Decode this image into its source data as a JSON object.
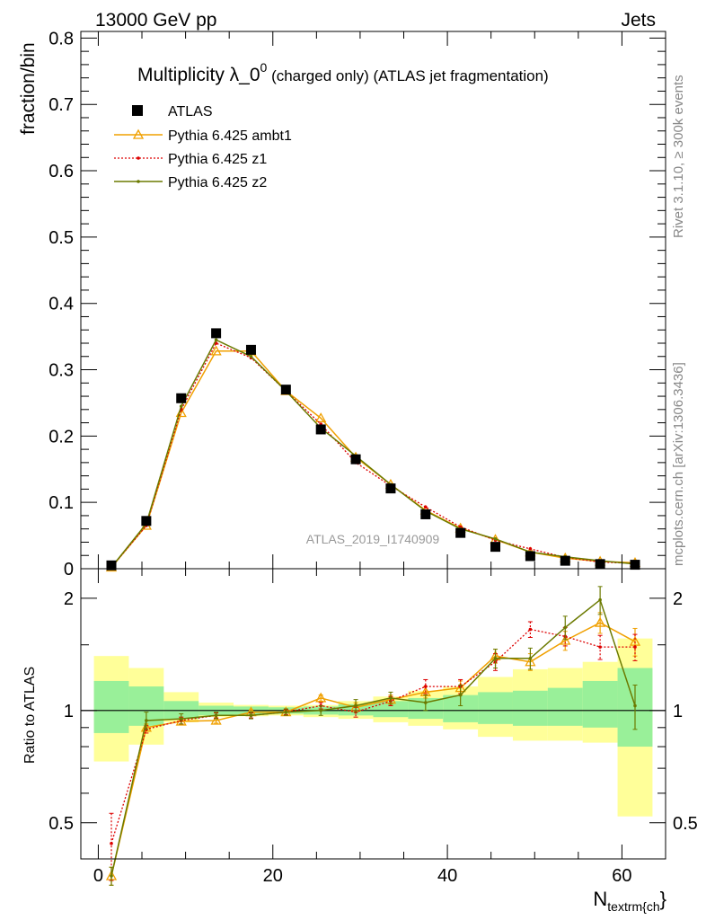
{
  "header": {
    "left": "13000 GeV pp",
    "right": "Jets"
  },
  "title": {
    "main": "Multiplicity λ_0",
    "sup": "0",
    "rest": " (charged only) (ATLAS jet fragmentation)"
  },
  "side_labels": {
    "rivet": "Rivet 3.1.10, ≥ 300k events",
    "mcplots": "mcplots.cern.ch [arXiv:1306.3436]"
  },
  "analysis_id": "ATLAS_2019_I1740909",
  "colors": {
    "data": "#000000",
    "ambt1": "#f0a000",
    "z1": "#dd0000",
    "z2": "#6b7a00",
    "band_inner": "#99f099",
    "band_outer": "#ffff99"
  },
  "chart_data": [
    {
      "type": "line",
      "panel": "main",
      "title": "Multiplicity λ_0^0 (charged only) (ATLAS jet fragmentation)",
      "ylabel": "fraction/bin",
      "xlim": [
        -2,
        65
      ],
      "ylim": [
        0,
        0.81
      ],
      "yticks": [
        0,
        0.1,
        0.2,
        0.3,
        0.4,
        0.5,
        0.6,
        0.7,
        0.8
      ],
      "yticklabels": [
        "0",
        "0.1",
        "0.2",
        "0.3",
        "0.4",
        "0.5",
        "0.6",
        "0.7",
        "0.8"
      ],
      "legend_position": "top-left",
      "x": [
        1.5,
        5.5,
        9.5,
        13.5,
        17.5,
        21.5,
        25.5,
        29.5,
        33.5,
        37.5,
        41.5,
        45.5,
        49.5,
        53.5,
        57.5,
        61.5
      ],
      "series": [
        {
          "name": "ATLAS",
          "key": "data",
          "values": [
            0.005,
            0.072,
            0.257,
            0.355,
            0.33,
            0.27,
            0.21,
            0.165,
            0.121,
            0.082,
            0.054,
            0.033,
            0.019,
            0.012,
            0.007,
            0.006
          ]
        },
        {
          "name": "Pythia 6.425 ambt1",
          "key": "ambt1",
          "values": [
            0.002,
            0.065,
            0.235,
            0.328,
            0.328,
            0.268,
            0.227,
            0.168,
            0.127,
            0.088,
            0.061,
            0.044,
            0.025,
            0.016,
            0.011,
            0.009
          ]
        },
        {
          "name": "Pythia 6.425 z1",
          "key": "z1",
          "values": [
            0.002,
            0.065,
            0.24,
            0.34,
            0.318,
            0.268,
            0.218,
            0.16,
            0.125,
            0.093,
            0.063,
            0.043,
            0.03,
            0.017,
            0.01,
            0.008
          ]
        },
        {
          "name": "Pythia 6.425 z2",
          "key": "z2",
          "values": [
            0.002,
            0.068,
            0.245,
            0.345,
            0.32,
            0.268,
            0.212,
            0.17,
            0.127,
            0.087,
            0.06,
            0.045,
            0.025,
            0.018,
            0.012,
            0.007
          ]
        }
      ]
    },
    {
      "type": "line",
      "panel": "ratio",
      "ylabel": "Ratio to ATLAS",
      "xlabel_main": "N",
      "xlabel_sub": "textrm{ch",
      "xlabel_tail": "}",
      "xlim": [
        -2,
        65
      ],
      "ylim": [
        0.4,
        2.4
      ],
      "log_y": true,
      "xticks": [
        0,
        20,
        40,
        60
      ],
      "xticklabels": [
        "0",
        "20",
        "40",
        "60"
      ],
      "yticks": [
        0.5,
        1,
        2
      ],
      "yticklabels": [
        "0.5",
        "1",
        "2"
      ],
      "bins": [
        [
          -0.5,
          3.5
        ],
        [
          3.5,
          7.5
        ],
        [
          7.5,
          11.5
        ],
        [
          11.5,
          15.5
        ],
        [
          15.5,
          19.5
        ],
        [
          19.5,
          23.5
        ],
        [
          23.5,
          27.5
        ],
        [
          27.5,
          31.5
        ],
        [
          31.5,
          35.5
        ],
        [
          35.5,
          39.5
        ],
        [
          39.5,
          43.5
        ],
        [
          43.5,
          47.5
        ],
        [
          47.5,
          51.5
        ],
        [
          51.5,
          55.5
        ],
        [
          55.5,
          59.5
        ],
        [
          59.5,
          63.5
        ]
      ],
      "band_inner": [
        [
          0.87,
          1.2
        ],
        [
          0.91,
          1.16
        ],
        [
          0.95,
          1.06
        ],
        [
          0.97,
          1.03
        ],
        [
          0.975,
          1.025
        ],
        [
          0.98,
          1.02
        ],
        [
          0.975,
          1.025
        ],
        [
          0.97,
          1.04
        ],
        [
          0.96,
          1.06
        ],
        [
          0.95,
          1.08
        ],
        [
          0.93,
          1.1
        ],
        [
          0.92,
          1.12
        ],
        [
          0.91,
          1.13
        ],
        [
          0.91,
          1.15
        ],
        [
          0.9,
          1.2
        ],
        [
          0.8,
          1.3
        ]
      ],
      "band_outer": [
        [
          0.73,
          1.4
        ],
        [
          0.81,
          1.3
        ],
        [
          0.93,
          1.12
        ],
        [
          0.96,
          1.05
        ],
        [
          0.965,
          1.035
        ],
        [
          0.97,
          1.03
        ],
        [
          0.96,
          1.035
        ],
        [
          0.95,
          1.06
        ],
        [
          0.93,
          1.09
        ],
        [
          0.91,
          1.13
        ],
        [
          0.89,
          1.16
        ],
        [
          0.85,
          1.23
        ],
        [
          0.83,
          1.29
        ],
        [
          0.83,
          1.3
        ],
        [
          0.82,
          1.35
        ],
        [
          0.52,
          1.56
        ]
      ],
      "x": [
        1.5,
        5.5,
        9.5,
        13.5,
        17.5,
        21.5,
        25.5,
        29.5,
        33.5,
        37.5,
        41.5,
        45.5,
        49.5,
        53.5,
        57.5,
        61.5
      ],
      "series": [
        {
          "name": "Pythia 6.425 ambt1",
          "key": "ambt1",
          "values": [
            0.36,
            0.9,
            0.935,
            0.94,
            0.99,
            0.99,
            1.08,
            1.02,
            1.07,
            1.12,
            1.15,
            1.4,
            1.35,
            1.54,
            1.72,
            1.53
          ],
          "err": [
            0.02,
            0.02,
            0.02,
            0.015,
            0.015,
            0.015,
            0.02,
            0.03,
            0.03,
            0.04,
            0.05,
            0.06,
            0.07,
            0.09,
            0.11,
            0.13
          ]
        },
        {
          "name": "Pythia 6.425 z1",
          "key": "z1",
          "values": [
            0.44,
            0.89,
            0.94,
            0.97,
            0.97,
            0.99,
            1.03,
            0.99,
            1.06,
            1.16,
            1.16,
            1.35,
            1.65,
            1.58,
            1.48,
            1.48
          ],
          "err": [
            0.09,
            0.02,
            0.02,
            0.015,
            0.015,
            0.015,
            0.02,
            0.03,
            0.03,
            0.05,
            0.05,
            0.07,
            0.08,
            0.09,
            0.11,
            0.12
          ]
        },
        {
          "name": "Pythia 6.425 z2",
          "key": "z2",
          "values": [
            0.36,
            0.94,
            0.95,
            0.97,
            0.97,
            0.99,
            1.0,
            1.03,
            1.08,
            1.05,
            1.1,
            1.38,
            1.38,
            1.67,
            1.98,
            1.03
          ],
          "err": [
            0.02,
            0.05,
            0.03,
            0.02,
            0.02,
            0.02,
            0.03,
            0.04,
            0.04,
            0.05,
            0.07,
            0.08,
            0.09,
            0.12,
            0.17,
            0.14
          ]
        }
      ]
    }
  ]
}
